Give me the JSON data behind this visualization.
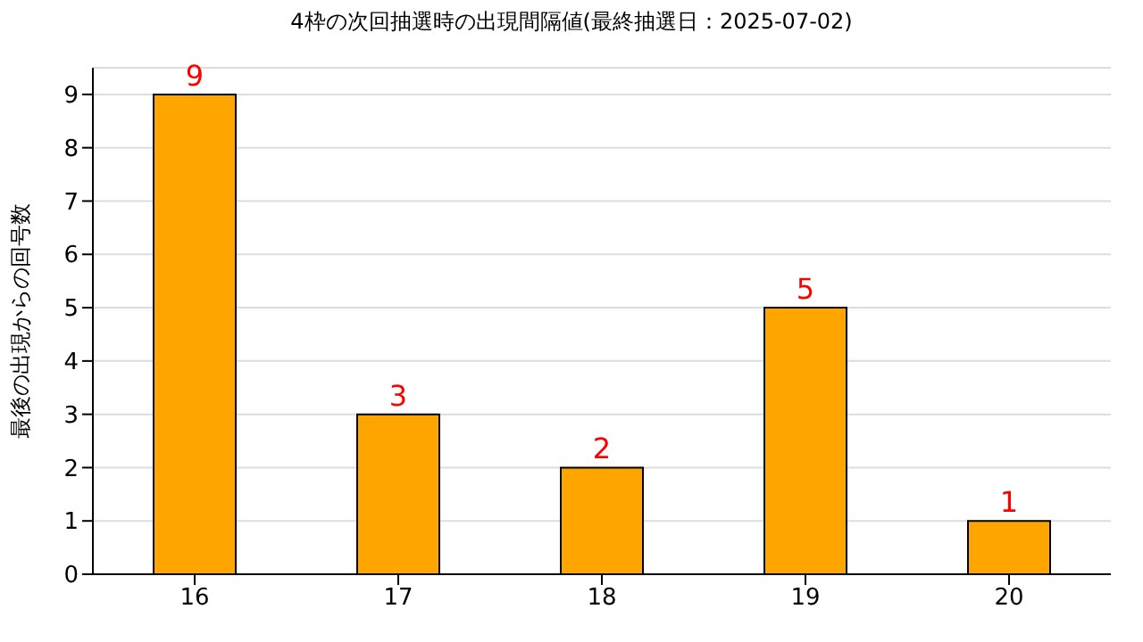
{
  "chart_data": {
    "type": "bar",
    "title": "4枠の次回抽選時の出現間隔値(最終抽選日：2025-07-02)",
    "ylabel": "最後の出現からの回号数",
    "categories": [
      "16",
      "17",
      "18",
      "19",
      "20"
    ],
    "series": [
      {
        "color": "#ffa500",
        "values": [
          9,
          3,
          2,
          5,
          1
        ]
      }
    ],
    "ylim": [
      0,
      9.5
    ],
    "yticks": [
      0,
      1,
      2,
      3,
      4,
      5,
      6,
      7,
      8,
      9
    ],
    "grid": "y",
    "data_labels": true,
    "legend": false
  }
}
